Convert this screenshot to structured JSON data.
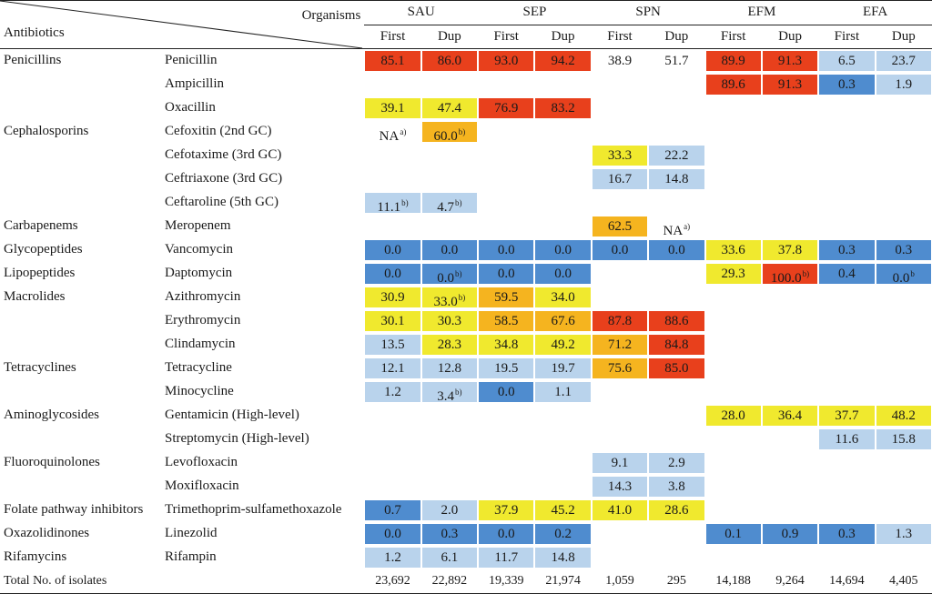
{
  "header": {
    "organisms_label": "Organisms",
    "antibiotics_label": "Antibiotics",
    "organisms": [
      "SAU",
      "SEP",
      "SPN",
      "EFM",
      "EFA"
    ],
    "sub": [
      "First",
      "Dup"
    ]
  },
  "colors": {
    "R": "#e8401c",
    "O": "#f5b41f",
    "Y": "#f0e92e",
    "L": "#b9d3ec",
    "B": "#4f8ccf",
    "W": "#ffffff"
  },
  "rows": [
    {
      "cls": "Penicillins",
      "abx": "Penicillin",
      "cells": [
        [
          "85.1",
          "R",
          ""
        ],
        [
          "86.0",
          "R",
          ""
        ],
        [
          "93.0",
          "R",
          ""
        ],
        [
          "94.2",
          "R",
          ""
        ],
        [
          "38.9",
          "W",
          ""
        ],
        [
          "51.7",
          "W",
          ""
        ],
        [
          "89.9",
          "R",
          ""
        ],
        [
          "91.3",
          "R",
          ""
        ],
        [
          "6.5",
          "L",
          ""
        ],
        [
          "23.7",
          "L",
          ""
        ]
      ]
    },
    {
      "cls": "",
      "abx": "Ampicillin",
      "cells": [
        [
          "",
          "",
          ""
        ],
        [
          "",
          "",
          ""
        ],
        [
          "",
          "",
          ""
        ],
        [
          "",
          "",
          ""
        ],
        [
          "",
          "",
          ""
        ],
        [
          "",
          "",
          ""
        ],
        [
          "89.6",
          "R",
          ""
        ],
        [
          "91.3",
          "R",
          ""
        ],
        [
          "0.3",
          "B",
          ""
        ],
        [
          "1.9",
          "L",
          ""
        ]
      ]
    },
    {
      "cls": "",
      "abx": "Oxacillin",
      "cells": [
        [
          "39.1",
          "Y",
          ""
        ],
        [
          "47.4",
          "Y",
          ""
        ],
        [
          "76.9",
          "R",
          ""
        ],
        [
          "83.2",
          "R",
          ""
        ],
        [
          "",
          "",
          ""
        ],
        [
          "",
          "",
          ""
        ],
        [
          "",
          "",
          ""
        ],
        [
          "",
          "",
          ""
        ],
        [
          "",
          "",
          ""
        ],
        [
          "",
          "",
          ""
        ]
      ]
    },
    {
      "cls": "Cephalosporins",
      "abx": "Cefoxitin (2nd GC)",
      "cells": [
        [
          "NA",
          "W",
          "a)"
        ],
        [
          "60.0",
          "O",
          "b)"
        ],
        [
          "",
          "",
          ""
        ],
        [
          "",
          "",
          ""
        ],
        [
          "",
          "",
          ""
        ],
        [
          "",
          "",
          ""
        ],
        [
          "",
          "",
          ""
        ],
        [
          "",
          "",
          ""
        ],
        [
          "",
          "",
          ""
        ],
        [
          "",
          "",
          ""
        ]
      ]
    },
    {
      "cls": "",
      "abx": "Cefotaxime (3rd GC)",
      "cells": [
        [
          "",
          "",
          ""
        ],
        [
          "",
          "",
          ""
        ],
        [
          "",
          "",
          ""
        ],
        [
          "",
          "",
          ""
        ],
        [
          "33.3",
          "Y",
          ""
        ],
        [
          "22.2",
          "L",
          ""
        ],
        [
          "",
          "",
          ""
        ],
        [
          "",
          "",
          ""
        ],
        [
          "",
          "",
          ""
        ],
        [
          "",
          "",
          ""
        ]
      ]
    },
    {
      "cls": "",
      "abx": "Ceftriaxone (3rd GC)",
      "cells": [
        [
          "",
          "",
          ""
        ],
        [
          "",
          "",
          ""
        ],
        [
          "",
          "",
          ""
        ],
        [
          "",
          "",
          ""
        ],
        [
          "16.7",
          "L",
          ""
        ],
        [
          "14.8",
          "L",
          ""
        ],
        [
          "",
          "",
          ""
        ],
        [
          "",
          "",
          ""
        ],
        [
          "",
          "",
          ""
        ],
        [
          "",
          "",
          ""
        ]
      ]
    },
    {
      "cls": "",
      "abx": "Ceftaroline (5th GC)",
      "cells": [
        [
          "11.1",
          "L",
          "b)"
        ],
        [
          "4.7",
          "L",
          "b)"
        ],
        [
          "",
          "",
          ""
        ],
        [
          "",
          "",
          ""
        ],
        [
          "",
          "",
          ""
        ],
        [
          "",
          "",
          ""
        ],
        [
          "",
          "",
          ""
        ],
        [
          "",
          "",
          ""
        ],
        [
          "",
          "",
          ""
        ],
        [
          "",
          "",
          ""
        ]
      ]
    },
    {
      "cls": "Carbapenems",
      "abx": "Meropenem",
      "cells": [
        [
          "",
          "",
          ""
        ],
        [
          "",
          "",
          ""
        ],
        [
          "",
          "",
          ""
        ],
        [
          "",
          "",
          ""
        ],
        [
          "62.5",
          "O",
          ""
        ],
        [
          "NA",
          "W",
          "a)"
        ],
        [
          "",
          "",
          ""
        ],
        [
          "",
          "",
          ""
        ],
        [
          "",
          "",
          ""
        ],
        [
          "",
          "",
          ""
        ]
      ]
    },
    {
      "cls": "Glycopeptides",
      "abx": "Vancomycin",
      "cells": [
        [
          "0.0",
          "B",
          ""
        ],
        [
          "0.0",
          "B",
          ""
        ],
        [
          "0.0",
          "B",
          ""
        ],
        [
          "0.0",
          "B",
          ""
        ],
        [
          "0.0",
          "B",
          ""
        ],
        [
          "0.0",
          "B",
          ""
        ],
        [
          "33.6",
          "Y",
          ""
        ],
        [
          "37.8",
          "Y",
          ""
        ],
        [
          "0.3",
          "B",
          ""
        ],
        [
          "0.3",
          "B",
          ""
        ]
      ]
    },
    {
      "cls": "Lipopeptides",
      "abx": "Daptomycin",
      "cells": [
        [
          "0.0",
          "B",
          ""
        ],
        [
          "0.0",
          "B",
          "b)"
        ],
        [
          "0.0",
          "B",
          ""
        ],
        [
          "0.0",
          "B",
          ""
        ],
        [
          "",
          "",
          ""
        ],
        [
          "",
          "",
          ""
        ],
        [
          "29.3",
          "Y",
          ""
        ],
        [
          "100.0",
          "R",
          "b)"
        ],
        [
          "0.4",
          "B",
          ""
        ],
        [
          "0.0",
          "B",
          "b"
        ]
      ]
    },
    {
      "cls": "Macrolides",
      "abx": "Azithromycin",
      "cells": [
        [
          "30.9",
          "Y",
          ""
        ],
        [
          "33.0",
          "Y",
          "b)"
        ],
        [
          "59.5",
          "O",
          ""
        ],
        [
          "34.0",
          "Y",
          ""
        ],
        [
          "",
          "",
          ""
        ],
        [
          "",
          "",
          ""
        ],
        [
          "",
          "",
          ""
        ],
        [
          "",
          "",
          ""
        ],
        [
          "",
          "",
          ""
        ],
        [
          "",
          "",
          ""
        ]
      ]
    },
    {
      "cls": "",
      "abx": "Erythromycin",
      "cells": [
        [
          "30.1",
          "Y",
          ""
        ],
        [
          "30.3",
          "Y",
          ""
        ],
        [
          "58.5",
          "O",
          ""
        ],
        [
          "67.6",
          "O",
          ""
        ],
        [
          "87.8",
          "R",
          ""
        ],
        [
          "88.6",
          "R",
          ""
        ],
        [
          "",
          "",
          ""
        ],
        [
          "",
          "",
          ""
        ],
        [
          "",
          "",
          ""
        ],
        [
          "",
          "",
          ""
        ]
      ]
    },
    {
      "cls": "",
      "abx": "Clindamycin",
      "cells": [
        [
          "13.5",
          "L",
          ""
        ],
        [
          "28.3",
          "Y",
          ""
        ],
        [
          "34.8",
          "Y",
          ""
        ],
        [
          "49.2",
          "Y",
          ""
        ],
        [
          "71.2",
          "O",
          ""
        ],
        [
          "84.8",
          "R",
          ""
        ],
        [
          "",
          "",
          ""
        ],
        [
          "",
          "",
          ""
        ],
        [
          "",
          "",
          ""
        ],
        [
          "",
          "",
          ""
        ]
      ]
    },
    {
      "cls": "Tetracyclines",
      "abx": "Tetracycline",
      "cells": [
        [
          "12.1",
          "L",
          ""
        ],
        [
          "12.8",
          "L",
          ""
        ],
        [
          "19.5",
          "L",
          ""
        ],
        [
          "19.7",
          "L",
          ""
        ],
        [
          "75.6",
          "O",
          ""
        ],
        [
          "85.0",
          "R",
          ""
        ],
        [
          "",
          "",
          ""
        ],
        [
          "",
          "",
          ""
        ],
        [
          "",
          "",
          ""
        ],
        [
          "",
          "",
          ""
        ]
      ]
    },
    {
      "cls": "",
      "abx": "Minocycline",
      "cells": [
        [
          "1.2",
          "L",
          ""
        ],
        [
          "3.4",
          "L",
          "b)"
        ],
        [
          "0.0",
          "B",
          ""
        ],
        [
          "1.1",
          "L",
          ""
        ],
        [
          "",
          "",
          ""
        ],
        [
          "",
          "",
          ""
        ],
        [
          "",
          "",
          ""
        ],
        [
          "",
          "",
          ""
        ],
        [
          "",
          "",
          ""
        ],
        [
          "",
          "",
          ""
        ]
      ]
    },
    {
      "cls": "Aminoglycosides",
      "abx": "Gentamicin (High-level)",
      "cells": [
        [
          "",
          "",
          ""
        ],
        [
          "",
          "",
          ""
        ],
        [
          "",
          "",
          ""
        ],
        [
          "",
          "",
          ""
        ],
        [
          "",
          "",
          ""
        ],
        [
          "",
          "",
          ""
        ],
        [
          "28.0",
          "Y",
          ""
        ],
        [
          "36.4",
          "Y",
          ""
        ],
        [
          "37.7",
          "Y",
          ""
        ],
        [
          "48.2",
          "Y",
          ""
        ]
      ]
    },
    {
      "cls": "",
      "abx": "Streptomycin (High-level)",
      "cells": [
        [
          "",
          "",
          ""
        ],
        [
          "",
          "",
          ""
        ],
        [
          "",
          "",
          ""
        ],
        [
          "",
          "",
          ""
        ],
        [
          "",
          "",
          ""
        ],
        [
          "",
          "",
          ""
        ],
        [
          "",
          "",
          ""
        ],
        [
          "",
          "",
          ""
        ],
        [
          "11.6",
          "L",
          ""
        ],
        [
          "15.8",
          "L",
          ""
        ]
      ]
    },
    {
      "cls": "Fluoroquinolones",
      "abx": "Levofloxacin",
      "cells": [
        [
          "",
          "",
          ""
        ],
        [
          "",
          "",
          ""
        ],
        [
          "",
          "",
          ""
        ],
        [
          "",
          "",
          ""
        ],
        [
          "9.1",
          "L",
          ""
        ],
        [
          "2.9",
          "L",
          ""
        ],
        [
          "",
          "",
          ""
        ],
        [
          "",
          "",
          ""
        ],
        [
          "",
          "",
          ""
        ],
        [
          "",
          "",
          ""
        ]
      ]
    },
    {
      "cls": "",
      "abx": "Moxifloxacin",
      "cells": [
        [
          "",
          "",
          ""
        ],
        [
          "",
          "",
          ""
        ],
        [
          "",
          "",
          ""
        ],
        [
          "",
          "",
          ""
        ],
        [
          "14.3",
          "L",
          ""
        ],
        [
          "3.8",
          "L",
          ""
        ],
        [
          "",
          "",
          ""
        ],
        [
          "",
          "",
          ""
        ],
        [
          "",
          "",
          ""
        ],
        [
          "",
          "",
          ""
        ]
      ]
    },
    {
      "cls": "Folate pathway inhibitors",
      "abx": "Trimethoprim-sulfamethoxazole",
      "cells": [
        [
          "0.7",
          "B",
          ""
        ],
        [
          "2.0",
          "L",
          ""
        ],
        [
          "37.9",
          "Y",
          ""
        ],
        [
          "45.2",
          "Y",
          ""
        ],
        [
          "41.0",
          "Y",
          ""
        ],
        [
          "28.6",
          "Y",
          ""
        ],
        [
          "",
          "",
          ""
        ],
        [
          "",
          "",
          ""
        ],
        [
          "",
          "",
          ""
        ],
        [
          "",
          "",
          ""
        ]
      ]
    },
    {
      "cls": "Oxazolidinones",
      "abx": "Linezolid",
      "cells": [
        [
          "0.0",
          "B",
          ""
        ],
        [
          "0.3",
          "B",
          ""
        ],
        [
          "0.0",
          "B",
          ""
        ],
        [
          "0.2",
          "B",
          ""
        ],
        [
          "",
          "",
          ""
        ],
        [
          "",
          "",
          ""
        ],
        [
          "0.1",
          "B",
          ""
        ],
        [
          "0.9",
          "B",
          ""
        ],
        [
          "0.3",
          "B",
          ""
        ],
        [
          "1.3",
          "L",
          ""
        ]
      ]
    },
    {
      "cls": "Rifamycins",
      "abx": "Rifampin",
      "cells": [
        [
          "1.2",
          "L",
          ""
        ],
        [
          "6.1",
          "L",
          ""
        ],
        [
          "11.7",
          "L",
          ""
        ],
        [
          "14.8",
          "L",
          ""
        ],
        [
          "",
          "",
          ""
        ],
        [
          "",
          "",
          ""
        ],
        [
          "",
          "",
          ""
        ],
        [
          "",
          "",
          ""
        ],
        [
          "",
          "",
          ""
        ],
        [
          "",
          "",
          ""
        ]
      ]
    }
  ],
  "totals": {
    "label": "Total No. of isolates",
    "values": [
      "23,692",
      "22,892",
      "19,339",
      "21,974",
      "1,059",
      "295",
      "14,188",
      "9,264",
      "14,694",
      "4,405"
    ]
  }
}
